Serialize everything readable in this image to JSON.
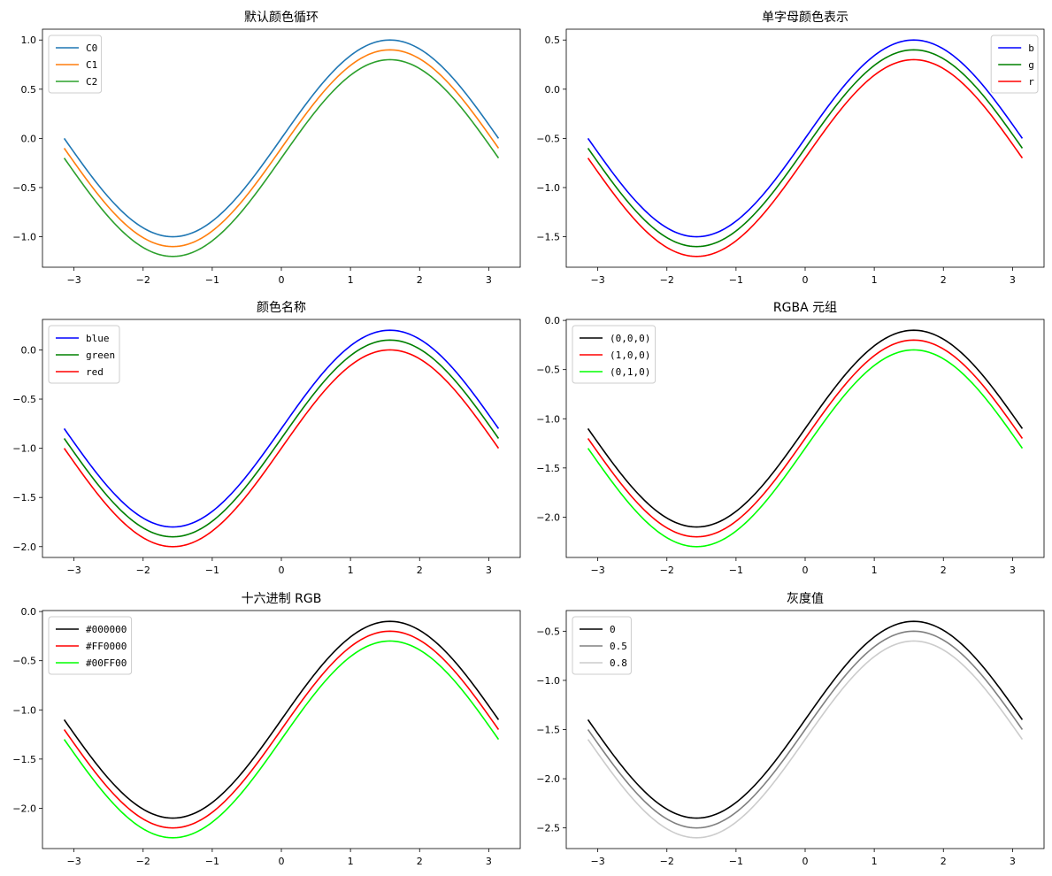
{
  "chart_data": [
    {
      "type": "line",
      "title": "默认颜色循环",
      "xlim": [
        -3.456,
        3.456
      ],
      "ylim": [
        -1.31,
        1.11
      ],
      "xticks": [
        -3,
        -2,
        -1,
        0,
        1,
        2,
        3
      ],
      "xtick_labels": [
        "−3",
        "−2",
        "−1",
        "0",
        "1",
        "2",
        "3"
      ],
      "yticks": [
        -1.0,
        -0.5,
        0.0,
        0.5,
        1.0
      ],
      "ytick_labels": [
        "−1.0",
        "−0.5",
        "0.0",
        "0.5",
        "1.0"
      ],
      "legend_position": "upper-left",
      "series": [
        {
          "name": "C0",
          "color": "#1f77b4",
          "function": "sin(x)",
          "offset": 0.0
        },
        {
          "name": "C1",
          "color": "#ff7f0e",
          "function": "sin(x)",
          "offset": -0.1
        },
        {
          "name": "C2",
          "color": "#2ca02c",
          "function": "sin(x)",
          "offset": -0.2
        }
      ]
    },
    {
      "type": "line",
      "title": "单字母颜色表示",
      "xlim": [
        -3.456,
        3.456
      ],
      "ylim": [
        -1.81,
        0.61
      ],
      "xticks": [
        -3,
        -2,
        -1,
        0,
        1,
        2,
        3
      ],
      "xtick_labels": [
        "−3",
        "−2",
        "−1",
        "0",
        "1",
        "2",
        "3"
      ],
      "yticks": [
        -1.5,
        -1.0,
        -0.5,
        0.0,
        0.5
      ],
      "ytick_labels": [
        "−1.5",
        "−1.0",
        "−0.5",
        "0.0",
        "0.5"
      ],
      "legend_position": "upper-right",
      "series": [
        {
          "name": "b",
          "color": "#0000ff",
          "function": "sin(x)",
          "offset": -0.5
        },
        {
          "name": "g",
          "color": "#008000",
          "function": "sin(x)",
          "offset": -0.6
        },
        {
          "name": "r",
          "color": "#ff0000",
          "function": "sin(x)",
          "offset": -0.7
        }
      ]
    },
    {
      "type": "line",
      "title": "颜色名称",
      "xlim": [
        -3.456,
        3.456
      ],
      "ylim": [
        -2.11,
        0.31
      ],
      "xticks": [
        -3,
        -2,
        -1,
        0,
        1,
        2,
        3
      ],
      "xtick_labels": [
        "−3",
        "−2",
        "−1",
        "0",
        "1",
        "2",
        "3"
      ],
      "yticks": [
        -2.0,
        -1.5,
        -1.0,
        -0.5,
        0.0
      ],
      "ytick_labels": [
        "−2.0",
        "−1.5",
        "−1.0",
        "−0.5",
        "0.0"
      ],
      "legend_position": "upper-left",
      "series": [
        {
          "name": "blue",
          "color": "#0000ff",
          "function": "sin(x)",
          "offset": -0.8
        },
        {
          "name": "green",
          "color": "#008000",
          "function": "sin(x)",
          "offset": -0.9
        },
        {
          "name": "red",
          "color": "#ff0000",
          "function": "sin(x)",
          "offset": -1.0
        }
      ]
    },
    {
      "type": "line",
      "title": "RGBA 元组",
      "xlim": [
        -3.456,
        3.456
      ],
      "ylim": [
        -2.41,
        0.01
      ],
      "xticks": [
        -3,
        -2,
        -1,
        0,
        1,
        2,
        3
      ],
      "xtick_labels": [
        "−3",
        "−2",
        "−1",
        "0",
        "1",
        "2",
        "3"
      ],
      "yticks": [
        -2.0,
        -1.5,
        -1.0,
        -0.5,
        0.0
      ],
      "ytick_labels": [
        "−2.0",
        "−1.5",
        "−1.0",
        "−0.5",
        "0.0"
      ],
      "legend_position": "upper-left",
      "series": [
        {
          "name": "(0,0,0)",
          "color": "#000000",
          "function": "sin(x)",
          "offset": -1.1
        },
        {
          "name": "(1,0,0)",
          "color": "#ff0000",
          "function": "sin(x)",
          "offset": -1.2
        },
        {
          "name": "(0,1,0)",
          "color": "#00ff00",
          "function": "sin(x)",
          "offset": -1.3
        }
      ]
    },
    {
      "type": "line",
      "title": "十六进制 RGB",
      "xlim": [
        -3.456,
        3.456
      ],
      "ylim": [
        -2.41,
        0.01
      ],
      "xticks": [
        -3,
        -2,
        -1,
        0,
        1,
        2,
        3
      ],
      "xtick_labels": [
        "−3",
        "−2",
        "−1",
        "0",
        "1",
        "2",
        "3"
      ],
      "yticks": [
        -2.0,
        -1.5,
        -1.0,
        -0.5,
        0.0
      ],
      "ytick_labels": [
        "−2.0",
        "−1.5",
        "−1.0",
        "−0.5",
        "0.0"
      ],
      "legend_position": "upper-left",
      "series": [
        {
          "name": "#000000",
          "color": "#000000",
          "function": "sin(x)",
          "offset": -1.1
        },
        {
          "name": "#FF0000",
          "color": "#ff0000",
          "function": "sin(x)",
          "offset": -1.2
        },
        {
          "name": "#00FF00",
          "color": "#00ff00",
          "function": "sin(x)",
          "offset": -1.3
        }
      ]
    },
    {
      "type": "line",
      "title": "灰度值",
      "xlim": [
        -3.456,
        3.456
      ],
      "ylim": [
        -2.71,
        -0.29
      ],
      "xticks": [
        -3,
        -2,
        -1,
        0,
        1,
        2,
        3
      ],
      "xtick_labels": [
        "−3",
        "−2",
        "−1",
        "0",
        "1",
        "2",
        "3"
      ],
      "yticks": [
        -2.5,
        -2.0,
        -1.5,
        -1.0,
        -0.5
      ],
      "ytick_labels": [
        "−2.5",
        "−2.0",
        "−1.5",
        "−1.0",
        "−0.5"
      ],
      "legend_position": "upper-left",
      "series": [
        {
          "name": "0",
          "color": "#000000",
          "function": "sin(x)",
          "offset": -1.4
        },
        {
          "name": "0.5",
          "color": "#808080",
          "function": "sin(x)",
          "offset": -1.5
        },
        {
          "name": "0.8",
          "color": "#cccccc",
          "function": "sin(x)",
          "offset": -1.6
        }
      ]
    }
  ]
}
